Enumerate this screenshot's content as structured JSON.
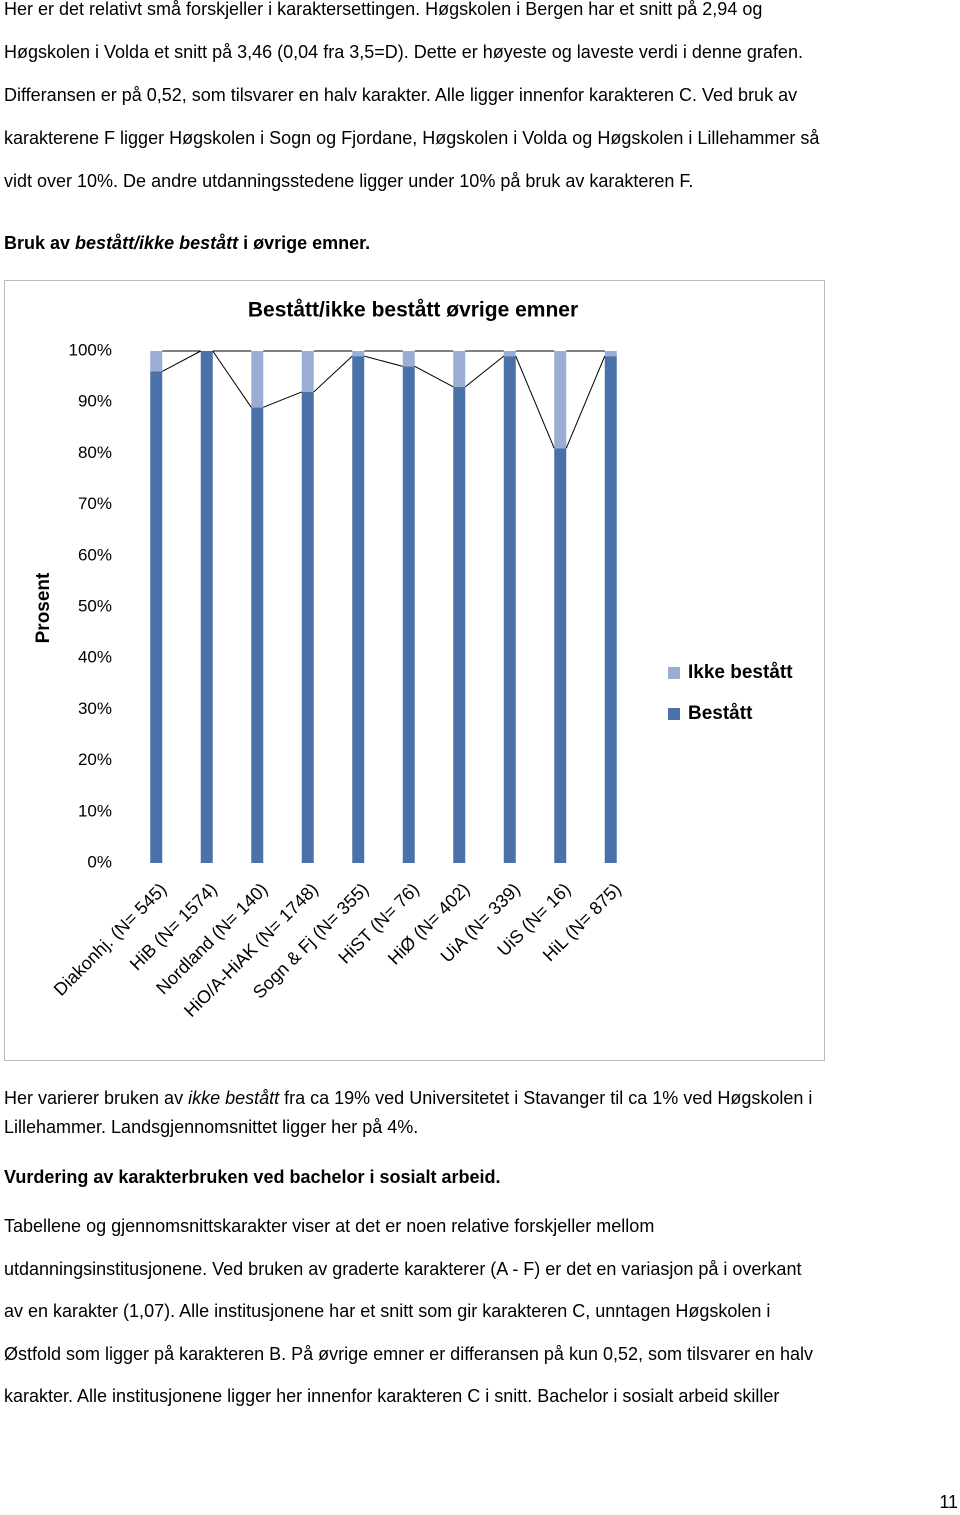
{
  "blocks": [
    {
      "lines": [
        [
          "Her er det relativt små forskjeller i karaktersettingen. Høgskolen i Bergen har et snitt på 2,94 og"
        ],
        [
          "Høgskolen i Volda et snitt på 3,46 (0,04 fra 3,5=D). Dette er høyeste og laveste verdi i denne grafen."
        ],
        [
          "Differansen er på 0,52, som tilsvarer en halv karakter. Alle ligger innenfor karakteren C. Ved bruk av"
        ],
        [
          "karakterene F ligger Høgskolen i Sogn og Fjordane, Høgskolen i Volda og Høgskolen i Lillehammer så"
        ],
        [
          "vidt over 10%. De andre utdanningsstedene ligger under 10% på bruk av karakteren F."
        ]
      ]
    },
    {
      "weight": "bold",
      "lines": [
        [
          "Bruk av ",
          {
            "text": "bestått/ikke bestått",
            "style": "italic"
          },
          " i øvrige emner."
        ]
      ]
    },
    {
      "lines": [
        [
          "Her varierer bruken av ",
          {
            "text": "ikke bestått",
            "style": "italic"
          },
          " fra ca 19% ved Universitetet i Stavanger til ca 1% ved Høgskolen i"
        ],
        [
          "Lillehammer. Landsgjennomsnittet ligger her på 4%."
        ]
      ]
    },
    {
      "weight": "bold",
      "lines": [
        [
          "Vurdering av karakterbruken ved bachelor i sosialt arbeid."
        ]
      ]
    },
    {
      "lines": [
        [
          "Tabellene og gjennomsnittskarakter viser at det er noen relative forskjeller mellom"
        ],
        [
          "utdanningsinstitusjonene. Ved bruken av graderte karakterer (A - F) er det en variasjon på i overkant"
        ],
        [
          "av en karakter (1,07). Alle institusjonene har et snitt som gir karakteren C, unntagen Høgskolen i"
        ],
        [
          "Østfold som ligger på karakteren B. På øvrige emner er differansen på kun 0,52, som tilsvarer en halv"
        ],
        [
          "karakter. Alle institusjonene ligger her innenfor karakteren C i snitt. Bachelor i sosialt arbeid skiller"
        ]
      ]
    }
  ],
  "page_number": "11",
  "chart_data": {
    "type": "bar",
    "stacked": true,
    "title": "Bestått/ikke bestått øvrige emner",
    "y_label": "Prosent",
    "categories": [
      "Diakonhj. (N= 545)",
      "HiB (N= 1574)",
      "Nordland (N= 140)",
      "HiO/A-HiAK (N= 1748)",
      "Sogn & Fj (N= 355)",
      "HiST (N= 76)",
      "HiØ (N= 402)",
      "UiA (N= 339)",
      "UiS (N= 16)",
      "HiL (N= 875)"
    ],
    "series": [
      {
        "name": "Bestått",
        "color": "#4a72a8",
        "values": [
          96,
          100,
          89,
          92,
          99,
          97,
          93,
          99,
          81,
          99
        ]
      },
      {
        "name": "Ikke bestått",
        "color": "#9aaed3",
        "values": [
          4,
          0,
          11,
          8,
          1,
          3,
          7,
          1,
          19,
          1
        ]
      }
    ],
    "ylim": [
      0,
      100
    ],
    "yticks": [
      {
        "value": 0,
        "label": "0%"
      },
      {
        "value": 10,
        "label": "10%"
      },
      {
        "value": 20,
        "label": "20%"
      },
      {
        "value": 30,
        "label": "30%"
      },
      {
        "value": 40,
        "label": "40%"
      },
      {
        "value": 50,
        "label": "50%"
      },
      {
        "value": 60,
        "label": "60%"
      },
      {
        "value": 70,
        "label": "70%"
      },
      {
        "value": 80,
        "label": "80%"
      },
      {
        "value": 90,
        "label": "90%"
      },
      {
        "value": 100,
        "label": "100%"
      }
    ],
    "legend": "right"
  }
}
